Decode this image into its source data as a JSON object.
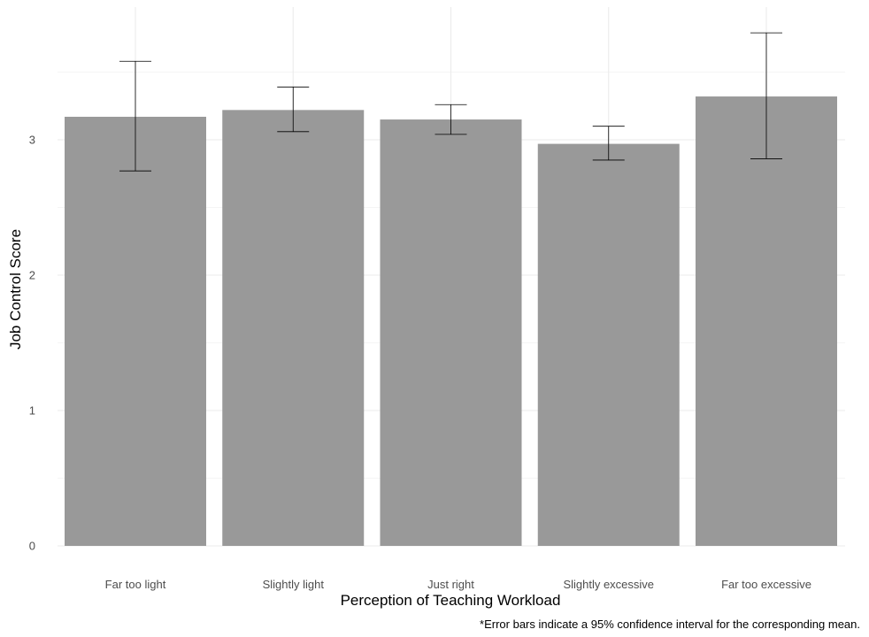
{
  "chart_data": {
    "type": "bar",
    "title": "",
    "xlabel": "Perception of Teaching Workload",
    "ylabel": "Job Control Score",
    "caption": "*Error bars indicate a 95% confidence interval for the corresponding mean.",
    "categories": [
      "Far too light",
      "Slightly light",
      "Just right",
      "Slightly excessive",
      "Far too excessive"
    ],
    "values": [
      3.17,
      3.22,
      3.15,
      2.97,
      3.32
    ],
    "error_bars": {
      "lower": [
        2.77,
        3.06,
        3.04,
        2.85,
        2.86
      ],
      "upper": [
        3.58,
        3.39,
        3.26,
        3.1,
        3.79
      ]
    },
    "ylim": [
      0,
      3.98
    ],
    "yticks": [
      "0",
      "1",
      "2",
      "3"
    ],
    "grid": true,
    "colors": {
      "bar": "#999999",
      "error_bar": "#000000",
      "grid": "#ebebeb"
    }
  }
}
